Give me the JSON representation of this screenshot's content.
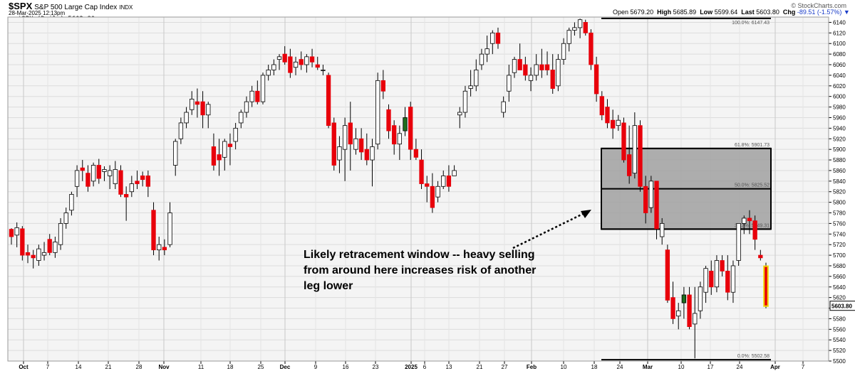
{
  "header": {
    "symbol": "$SPX",
    "description": "S&P 500 Large Cap Index",
    "exchange": "INDX",
    "datetime": "28-Mar-2025 12:13pm",
    "brand": "© StockCharts.com",
    "quote": {
      "open_label": "Open",
      "open": "5679.20",
      "high_label": "High",
      "high": "5685.89",
      "low_label": "Low",
      "low": "5599.64",
      "last_label": "Last",
      "last": "5603.80",
      "chg_label": "Chg",
      "chg": "-89.51 (-1.57%)"
    },
    "legend": "$SPX (Daily) 5603.80"
  },
  "colors": {
    "up": "#ffffff",
    "down": "#e8000b",
    "up_green": "#1e6e1e",
    "band": "#a0a0a0",
    "outline": "#000000"
  },
  "chart_data": {
    "type": "candlestick",
    "ylim": [
      5500,
      6150
    ],
    "y_ticks": [
      5500,
      5520,
      5540,
      5560,
      5580,
      5600,
      5620,
      5640,
      5660,
      5680,
      5700,
      5720,
      5740,
      5760,
      5780,
      5800,
      5820,
      5840,
      5860,
      5880,
      5900,
      5920,
      5940,
      5960,
      5980,
      6000,
      6020,
      6040,
      6060,
      6080,
      6100,
      6120,
      6140
    ],
    "x_ticks": [
      "Oct",
      "7",
      "14",
      "21",
      "28",
      "Nov",
      "11",
      "18",
      "25",
      "Dec",
      "9",
      "16",
      "23",
      "2025",
      "6",
      "13",
      "21",
      "27",
      "Feb",
      "10",
      "18",
      "24",
      "Mar",
      "10",
      "17",
      "24",
      "Apr",
      "7"
    ],
    "last_value_label": "5603.80",
    "fib_levels": [
      {
        "label": "61.8%: 5901.73",
        "value": 5901.73
      },
      {
        "label": "50.0%: 5825.52",
        "value": 5825.52
      },
      {
        "label": "38.2%: 5749.31",
        "value": 5749.31
      },
      {
        "label": "0.0%: 5502.58",
        "value": 5502.58
      },
      {
        "label": "100.0%: 6147.43",
        "value": 6147.43
      }
    ],
    "annotation": [
      "Likely retracement window -- heavy selling",
      "from around here increases risk of another",
      "leg lower"
    ],
    "candles": [
      [
        5749,
        5751,
        5720,
        5735
      ],
      [
        5738,
        5762,
        5715,
        5752
      ],
      [
        5750,
        5755,
        5690,
        5700
      ],
      [
        5705,
        5720,
        5685,
        5700
      ],
      [
        5700,
        5710,
        5675,
        5695
      ],
      [
        5690,
        5720,
        5680,
        5712
      ],
      [
        5700,
        5725,
        5690,
        5705
      ],
      [
        5730,
        5740,
        5700,
        5705
      ],
      [
        5705,
        5735,
        5695,
        5725
      ],
      [
        5720,
        5770,
        5710,
        5760
      ],
      [
        5760,
        5790,
        5750,
        5780
      ],
      [
        5785,
        5820,
        5775,
        5815
      ],
      [
        5830,
        5870,
        5810,
        5860
      ],
      [
        5865,
        5880,
        5840,
        5860
      ],
      [
        5855,
        5870,
        5820,
        5830
      ],
      [
        5840,
        5875,
        5830,
        5870
      ],
      [
        5870,
        5882,
        5835,
        5845
      ],
      [
        5858,
        5868,
        5840,
        5862
      ],
      [
        5850,
        5870,
        5825,
        5860
      ],
      [
        5835,
        5878,
        5825,
        5862
      ],
      [
        5860,
        5870,
        5810,
        5815
      ],
      [
        5815,
        5830,
        5765,
        5810
      ],
      [
        5820,
        5850,
        5810,
        5835
      ],
      [
        5840,
        5860,
        5825,
        5835
      ],
      [
        5850,
        5858,
        5830,
        5843
      ],
      [
        5850,
        5860,
        5810,
        5830
      ],
      [
        5785,
        5800,
        5700,
        5710
      ],
      [
        5710,
        5735,
        5690,
        5720
      ],
      [
        5715,
        5730,
        5700,
        5710
      ],
      [
        5720,
        5800,
        5715,
        5780
      ],
      [
        5870,
        5920,
        5850,
        5915
      ],
      [
        5920,
        5960,
        5910,
        5950
      ],
      [
        5950,
        5980,
        5940,
        5970
      ],
      [
        5975,
        6010,
        5965,
        5995
      ],
      [
        5990,
        6015,
        5960,
        5985
      ],
      [
        5990,
        6010,
        5940,
        5965
      ],
      [
        5965,
        5990,
        5940,
        5985
      ],
      [
        5905,
        5930,
        5860,
        5870
      ],
      [
        5890,
        5920,
        5850,
        5880
      ],
      [
        5885,
        5920,
        5860,
        5915
      ],
      [
        5910,
        5930,
        5870,
        5905
      ],
      [
        5915,
        5950,
        5900,
        5940
      ],
      [
        5950,
        5975,
        5940,
        5970
      ],
      [
        5970,
        6000,
        5960,
        5990
      ],
      [
        5990,
        6020,
        5980,
        6010
      ],
      [
        6010,
        6030,
        5985,
        5990
      ],
      [
        5990,
        6045,
        5985,
        6040
      ],
      [
        6040,
        6060,
        6030,
        6050
      ],
      [
        6050,
        6070,
        6040,
        6060
      ],
      [
        6070,
        6080,
        6050,
        6075
      ],
      [
        6080,
        6095,
        6060,
        6065
      ],
      [
        6075,
        6090,
        6035,
        6045
      ],
      [
        6055,
        6075,
        6040,
        6065
      ],
      [
        6070,
        6085,
        6050,
        6060
      ],
      [
        6060,
        6080,
        6045,
        6075
      ],
      [
        6075,
        6090,
        6055,
        6065
      ],
      [
        6060,
        6075,
        6050,
        6055
      ],
      [
        6050,
        6060,
        6040,
        6050
      ],
      [
        6040,
        6045,
        5940,
        5945
      ],
      [
        5950,
        5960,
        5860,
        5870
      ],
      [
        5880,
        5925,
        5855,
        5905
      ],
      [
        5900,
        5960,
        5840,
        5945
      ],
      [
        5950,
        5990,
        5860,
        5910
      ],
      [
        5900,
        5940,
        5890,
        5920
      ],
      [
        5920,
        5940,
        5880,
        5895
      ],
      [
        5900,
        5930,
        5870,
        5880
      ],
      [
        5880,
        5920,
        5830,
        5905
      ],
      [
        5910,
        6045,
        5900,
        6030
      ],
      [
        6030,
        6050,
        5995,
        6010
      ],
      [
        5975,
        5985,
        5920,
        5935
      ],
      [
        5945,
        5955,
        5890,
        5910
      ],
      [
        5910,
        5945,
        5880,
        5930
      ],
      [
        5935,
        5980,
        5925,
        5960
      ],
      [
        5980,
        5990,
        5880,
        5900
      ],
      [
        5900,
        5920,
        5880,
        5885
      ],
      [
        5880,
        5900,
        5825,
        5835
      ],
      [
        5835,
        5850,
        5800,
        5830
      ],
      [
        5830,
        5855,
        5780,
        5790
      ],
      [
        5810,
        5840,
        5800,
        5830
      ],
      [
        5830,
        5860,
        5825,
        5850
      ],
      [
        5850,
        5870,
        5820,
        5830
      ],
      [
        5850,
        5870,
        5855,
        5860
      ],
      [
        5965,
        5980,
        5940,
        5970
      ],
      [
        5970,
        6020,
        5960,
        6010
      ],
      [
        6015,
        6050,
        6000,
        6020
      ],
      [
        6020,
        6070,
        6010,
        6050
      ],
      [
        6060,
        6090,
        6050,
        6080
      ],
      [
        6080,
        6115,
        6065,
        6090
      ],
      [
        6100,
        6125,
        6080,
        6120
      ],
      [
        6120,
        6130,
        6090,
        6100
      ],
      [
        5970,
        6000,
        5960,
        5990
      ],
      [
        6010,
        6060,
        5990,
        6040
      ],
      [
        6045,
        6075,
        6035,
        6070
      ],
      [
        6070,
        6100,
        6050,
        6050
      ],
      [
        6060,
        6075,
        6030,
        6040
      ],
      [
        6030,
        6055,
        6010,
        6040
      ],
      [
        6040,
        6080,
        6030,
        6060
      ],
      [
        6060,
        6090,
        6035,
        6050
      ],
      [
        6060,
        6085,
        6040,
        6050
      ],
      [
        6050,
        6080,
        6005,
        6015
      ],
      [
        6020,
        6080,
        6010,
        6070
      ],
      [
        6070,
        6110,
        6060,
        6100
      ],
      [
        6100,
        6130,
        6085,
        6125
      ],
      [
        6125,
        6140,
        6115,
        6130
      ],
      [
        6130,
        6147,
        6110,
        6145
      ],
      [
        6140,
        6145,
        6115,
        6120
      ],
      [
        6120,
        6127,
        6050,
        6060
      ],
      [
        6060,
        6075,
        5990,
        6005
      ],
      [
        6000,
        6010,
        5955,
        5965
      ],
      [
        5980,
        5995,
        5940,
        5950
      ],
      [
        5955,
        5975,
        5920,
        5940
      ],
      [
        5945,
        5965,
        5935,
        5955
      ],
      [
        5950,
        5960,
        5875,
        5880
      ],
      [
        5890,
        5945,
        5835,
        5850
      ],
      [
        5855,
        5970,
        5845,
        5945
      ],
      [
        5945,
        5955,
        5820,
        5830
      ],
      [
        5830,
        5850,
        5760,
        5780
      ],
      [
        5790,
        5850,
        5780,
        5840
      ],
      [
        5840,
        5840,
        5730,
        5750
      ],
      [
        5735,
        5770,
        5720,
        5760
      ],
      [
        5710,
        5720,
        5610,
        5615
      ],
      [
        5620,
        5650,
        5570,
        5580
      ],
      [
        5585,
        5610,
        5560,
        5595
      ],
      [
        5610,
        5640,
        5580,
        5625
      ],
      [
        5625,
        5640,
        5560,
        5565
      ],
      [
        5570,
        5640,
        5505,
        5590
      ],
      [
        5595,
        5650,
        5580,
        5640
      ],
      [
        5630,
        5680,
        5610,
        5675
      ],
      [
        5670,
        5690,
        5625,
        5640
      ],
      [
        5640,
        5700,
        5630,
        5690
      ],
      [
        5690,
        5700,
        5660,
        5670
      ],
      [
        5670,
        5700,
        5615,
        5630
      ],
      [
        5630,
        5690,
        5610,
        5680
      ],
      [
        5690,
        5760,
        5680,
        5760
      ],
      [
        5760,
        5775,
        5740,
        5770
      ],
      [
        5770,
        5785,
        5740,
        5765
      ],
      [
        5765,
        5775,
        5710,
        5730
      ],
      [
        5700,
        5710,
        5690,
        5695
      ],
      [
        5679.2,
        5685.89,
        5599.64,
        5603.8
      ]
    ]
  }
}
